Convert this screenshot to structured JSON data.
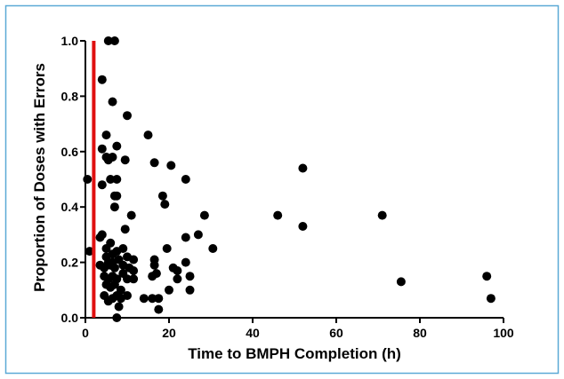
{
  "chart_data": {
    "type": "scatter",
    "xlabel": "Time to BMPH Completion (h)",
    "ylabel": "Proportion of Doses with Errors",
    "xlim": [
      0,
      100
    ],
    "ylim": [
      0,
      1.0
    ],
    "x_ticks": [
      0,
      20,
      40,
      60,
      80,
      100
    ],
    "x_tick_labels": [
      "0",
      "20",
      "40",
      "60",
      "80",
      "100"
    ],
    "y_ticks": [
      0.0,
      0.2,
      0.4,
      0.6,
      0.8,
      1.0
    ],
    "y_tick_labels": [
      "0.0",
      "0.2",
      "0.4",
      "0.6",
      "0.8",
      "1.0"
    ],
    "grid": false,
    "reference_line": {
      "x": 2,
      "color": "#e01010"
    },
    "colors": {
      "points": "#000000",
      "frame": "#5aa9d6",
      "axis": "#000000"
    },
    "points": [
      {
        "x": 0.5,
        "y": 0.5
      },
      {
        "x": 1.0,
        "y": 0.24
      },
      {
        "x": 5.5,
        "y": 1.0
      },
      {
        "x": 7.0,
        "y": 1.0
      },
      {
        "x": 4.0,
        "y": 0.86
      },
      {
        "x": 6.5,
        "y": 0.78
      },
      {
        "x": 10.0,
        "y": 0.73
      },
      {
        "x": 5.0,
        "y": 0.66
      },
      {
        "x": 15.0,
        "y": 0.66
      },
      {
        "x": 4.0,
        "y": 0.61
      },
      {
        "x": 7.5,
        "y": 0.62
      },
      {
        "x": 5.0,
        "y": 0.58
      },
      {
        "x": 5.5,
        "y": 0.57
      },
      {
        "x": 6.5,
        "y": 0.58
      },
      {
        "x": 9.5,
        "y": 0.57
      },
      {
        "x": 16.5,
        "y": 0.56
      },
      {
        "x": 20.5,
        "y": 0.55
      },
      {
        "x": 52.0,
        "y": 0.54
      },
      {
        "x": 6.0,
        "y": 0.5
      },
      {
        "x": 7.5,
        "y": 0.5
      },
      {
        "x": 24.0,
        "y": 0.5
      },
      {
        "x": 4.0,
        "y": 0.48
      },
      {
        "x": 7.0,
        "y": 0.44
      },
      {
        "x": 7.5,
        "y": 0.44
      },
      {
        "x": 18.5,
        "y": 0.44
      },
      {
        "x": 7.0,
        "y": 0.4
      },
      {
        "x": 19.0,
        "y": 0.41
      },
      {
        "x": 11.0,
        "y": 0.37
      },
      {
        "x": 28.5,
        "y": 0.37
      },
      {
        "x": 46.0,
        "y": 0.37
      },
      {
        "x": 71.0,
        "y": 0.37
      },
      {
        "x": 9.5,
        "y": 0.32
      },
      {
        "x": 52.0,
        "y": 0.33
      },
      {
        "x": 4.0,
        "y": 0.3
      },
      {
        "x": 3.5,
        "y": 0.29
      },
      {
        "x": 24.0,
        "y": 0.29
      },
      {
        "x": 27.0,
        "y": 0.3
      },
      {
        "x": 5.0,
        "y": 0.25
      },
      {
        "x": 6.0,
        "y": 0.27
      },
      {
        "x": 7.5,
        "y": 0.24
      },
      {
        "x": 9.0,
        "y": 0.25
      },
      {
        "x": 19.5,
        "y": 0.25
      },
      {
        "x": 30.5,
        "y": 0.25
      },
      {
        "x": 5.0,
        "y": 0.22
      },
      {
        "x": 6.5,
        "y": 0.23
      },
      {
        "x": 10.0,
        "y": 0.22
      },
      {
        "x": 11.5,
        "y": 0.21
      },
      {
        "x": 16.5,
        "y": 0.21
      },
      {
        "x": 24.0,
        "y": 0.2
      },
      {
        "x": 3.5,
        "y": 0.19
      },
      {
        "x": 4.5,
        "y": 0.18
      },
      {
        "x": 5.5,
        "y": 0.2
      },
      {
        "x": 6.0,
        "y": 0.19
      },
      {
        "x": 6.5,
        "y": 0.2
      },
      {
        "x": 7.0,
        "y": 0.18
      },
      {
        "x": 8.0,
        "y": 0.21
      },
      {
        "x": 9.0,
        "y": 0.19
      },
      {
        "x": 10.5,
        "y": 0.18
      },
      {
        "x": 11.5,
        "y": 0.17
      },
      {
        "x": 16.5,
        "y": 0.19
      },
      {
        "x": 21.0,
        "y": 0.18
      },
      {
        "x": 22.0,
        "y": 0.17
      },
      {
        "x": 4.5,
        "y": 0.15
      },
      {
        "x": 5.5,
        "y": 0.14
      },
      {
        "x": 6.5,
        "y": 0.15
      },
      {
        "x": 7.5,
        "y": 0.14
      },
      {
        "x": 9.0,
        "y": 0.16
      },
      {
        "x": 10.0,
        "y": 0.14
      },
      {
        "x": 11.5,
        "y": 0.14
      },
      {
        "x": 16.0,
        "y": 0.15
      },
      {
        "x": 17.0,
        "y": 0.16
      },
      {
        "x": 22.0,
        "y": 0.14
      },
      {
        "x": 25.0,
        "y": 0.15
      },
      {
        "x": 96.0,
        "y": 0.15
      },
      {
        "x": 75.5,
        "y": 0.13
      },
      {
        "x": 5.0,
        "y": 0.12
      },
      {
        "x": 6.0,
        "y": 0.11
      },
      {
        "x": 7.0,
        "y": 0.12
      },
      {
        "x": 8.5,
        "y": 0.1
      },
      {
        "x": 20.0,
        "y": 0.1
      },
      {
        "x": 25.0,
        "y": 0.1
      },
      {
        "x": 4.5,
        "y": 0.08
      },
      {
        "x": 5.5,
        "y": 0.06
      },
      {
        "x": 6.5,
        "y": 0.07
      },
      {
        "x": 7.5,
        "y": 0.08
      },
      {
        "x": 8.5,
        "y": 0.07
      },
      {
        "x": 10.0,
        "y": 0.08
      },
      {
        "x": 14.0,
        "y": 0.07
      },
      {
        "x": 16.0,
        "y": 0.07
      },
      {
        "x": 17.5,
        "y": 0.07
      },
      {
        "x": 97.0,
        "y": 0.07
      },
      {
        "x": 8.0,
        "y": 0.04
      },
      {
        "x": 17.5,
        "y": 0.03
      },
      {
        "x": 7.5,
        "y": 0.0
      }
    ]
  }
}
